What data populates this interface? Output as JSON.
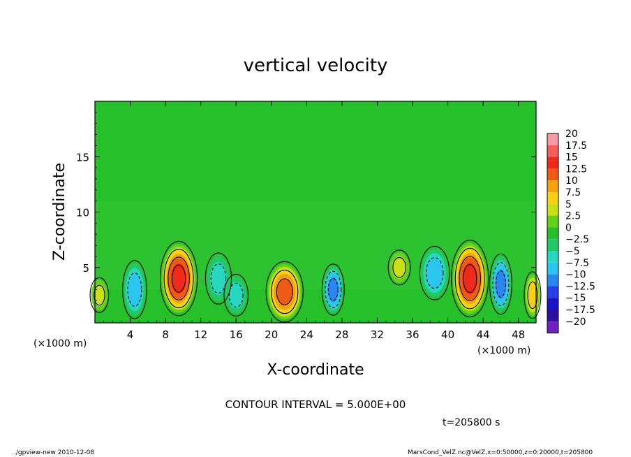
{
  "chart_data": {
    "type": "heatmap",
    "title": "vertical velocity",
    "xlabel": "X-coordinate",
    "ylabel": "Z-coordinate",
    "x_unit_note": "(×1000 m)",
    "x_unit_note_right": "(×1000 m)",
    "xlim": [
      0,
      50
    ],
    "ylim": [
      0,
      20
    ],
    "x_ticks": [
      4,
      8,
      12,
      16,
      20,
      24,
      28,
      32,
      36,
      40,
      44,
      48
    ],
    "x_tick_labels": [
      "4",
      "8",
      "12",
      "16",
      "20",
      "24",
      "28",
      "32",
      "36",
      "40",
      "44",
      "48"
    ],
    "y_ticks": [
      5,
      10,
      15
    ],
    "y_tick_labels": [
      "5",
      "10",
      "15"
    ],
    "contour_interval_text": "CONTOUR INTERVAL = 5.000E+00",
    "time_text": "t=205800 s",
    "colorbar": {
      "labels": [
        "20",
        "17.5",
        "15",
        "12.5",
        "10",
        "7.5",
        "5",
        "2.5",
        "0",
        "−2.5",
        "−5",
        "−7.5",
        "−10",
        "−12.5",
        "−15",
        "−17.5",
        "−20"
      ],
      "colors": [
        "#f89aa6",
        "#f45b5b",
        "#f02a1a",
        "#f05a14",
        "#f5a20f",
        "#f8d212",
        "#c8e014",
        "#62d21a",
        "#26c02a",
        "#22c866",
        "#26d8c0",
        "#2ac6f0",
        "#2a86f0",
        "#2640e8",
        "#1616c8",
        "#2e0ea0",
        "#7020c0"
      ]
    },
    "cells": [
      {
        "x": 0.5,
        "z": 2.5,
        "rx": 1.0,
        "rz": 1.5,
        "w": 6
      },
      {
        "x": 4.5,
        "z": 3.0,
        "rx": 1.3,
        "rz": 2.5,
        "w": -9
      },
      {
        "x": 9.5,
        "z": 4.0,
        "rx": 2.0,
        "rz": 3.2,
        "w": 15
      },
      {
        "x": 14.0,
        "z": 4.0,
        "rx": 1.4,
        "rz": 2.2,
        "w": -7
      },
      {
        "x": 16.0,
        "z": 2.5,
        "rx": 1.3,
        "rz": 1.8,
        "w": -7
      },
      {
        "x": 21.5,
        "z": 2.8,
        "rx": 2.0,
        "rz": 2.6,
        "w": 13
      },
      {
        "x": 27.0,
        "z": 3.0,
        "rx": 1.2,
        "rz": 2.2,
        "w": -10
      },
      {
        "x": 34.5,
        "z": 5.0,
        "rx": 1.2,
        "rz": 1.5,
        "w": 5
      },
      {
        "x": 38.5,
        "z": 4.5,
        "rx": 1.6,
        "rz": 2.3,
        "w": -8
      },
      {
        "x": 42.5,
        "z": 4.0,
        "rx": 2.0,
        "rz": 3.3,
        "w": 16
      },
      {
        "x": 46.0,
        "z": 3.5,
        "rx": 1.2,
        "rz": 2.6,
        "w": -11
      },
      {
        "x": 49.6,
        "z": 2.5,
        "rx": 0.9,
        "rz": 2.0,
        "w": 8
      }
    ]
  },
  "footer": {
    "left": "./gpview-new  2010-12-08",
    "right": "MarsCond_VelZ.nc@VelZ,x=0:50000,z=0:20000,t=205800"
  }
}
